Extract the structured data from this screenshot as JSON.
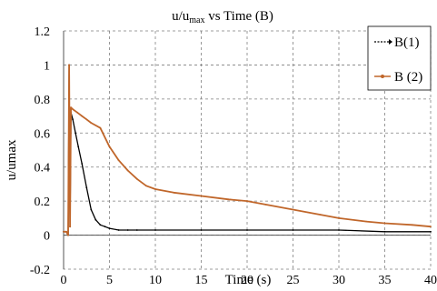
{
  "chart_data": {
    "type": "line",
    "title_prefix": "u/u",
    "title_sub": "max",
    "title_suffix": " vs Time (B)",
    "xlabel": "Time (s)",
    "ylabel": "u/umax",
    "xlim": [
      0,
      40
    ],
    "ylim": [
      -0.2,
      1.2
    ],
    "x_ticks": [
      0,
      5,
      10,
      15,
      20,
      25,
      30,
      35,
      40
    ],
    "y_ticks": [
      -0.2,
      0,
      0.2,
      0.4,
      0.6,
      0.8,
      1,
      1.2
    ],
    "x_tick_labels": [
      "0",
      "5",
      "10",
      "15",
      "20",
      "25",
      "30",
      "35",
      "40"
    ],
    "y_tick_labels": [
      "-0.2",
      "0",
      "0.2",
      "0.4",
      "0.6",
      "0.8",
      "1",
      "1.2"
    ],
    "grid": true,
    "legend_position": "top-right",
    "series": [
      {
        "name": "B(1)",
        "color": "#000000",
        "x": [
          0.0,
          0.3,
          0.5,
          0.6,
          0.7,
          0.8,
          1.0,
          1.3,
          1.6,
          2.0,
          2.5,
          3.0,
          3.5,
          4.0,
          4.5,
          5.0,
          6.0,
          7.0,
          8.0,
          10.0,
          15.0,
          20.0,
          25.0,
          30.0,
          35.0,
          40.0
        ],
        "y": [
          0.02,
          0.02,
          0.0,
          1.0,
          0.05,
          0.72,
          0.68,
          0.6,
          0.52,
          0.42,
          0.28,
          0.15,
          0.09,
          0.06,
          0.05,
          0.04,
          0.03,
          0.03,
          0.03,
          0.03,
          0.03,
          0.03,
          0.03,
          0.03,
          0.02,
          0.02
        ]
      },
      {
        "name": "B (2)",
        "color": "#c0662a",
        "x": [
          0.0,
          0.3,
          0.5,
          0.6,
          0.7,
          0.8,
          1.0,
          1.5,
          2.0,
          2.5,
          3.0,
          4.0,
          5.0,
          6.0,
          7.0,
          8.0,
          9.0,
          10.0,
          12.0,
          15.0,
          18.0,
          20.0,
          22.0,
          25.0,
          28.0,
          30.0,
          33.0,
          35.0,
          38.0,
          40.0
        ],
        "y": [
          0.02,
          0.02,
          0.0,
          1.0,
          0.05,
          0.75,
          0.74,
          0.72,
          0.7,
          0.68,
          0.66,
          0.63,
          0.52,
          0.44,
          0.38,
          0.33,
          0.29,
          0.27,
          0.25,
          0.23,
          0.21,
          0.2,
          0.18,
          0.15,
          0.12,
          0.1,
          0.08,
          0.07,
          0.06,
          0.05
        ]
      }
    ]
  }
}
